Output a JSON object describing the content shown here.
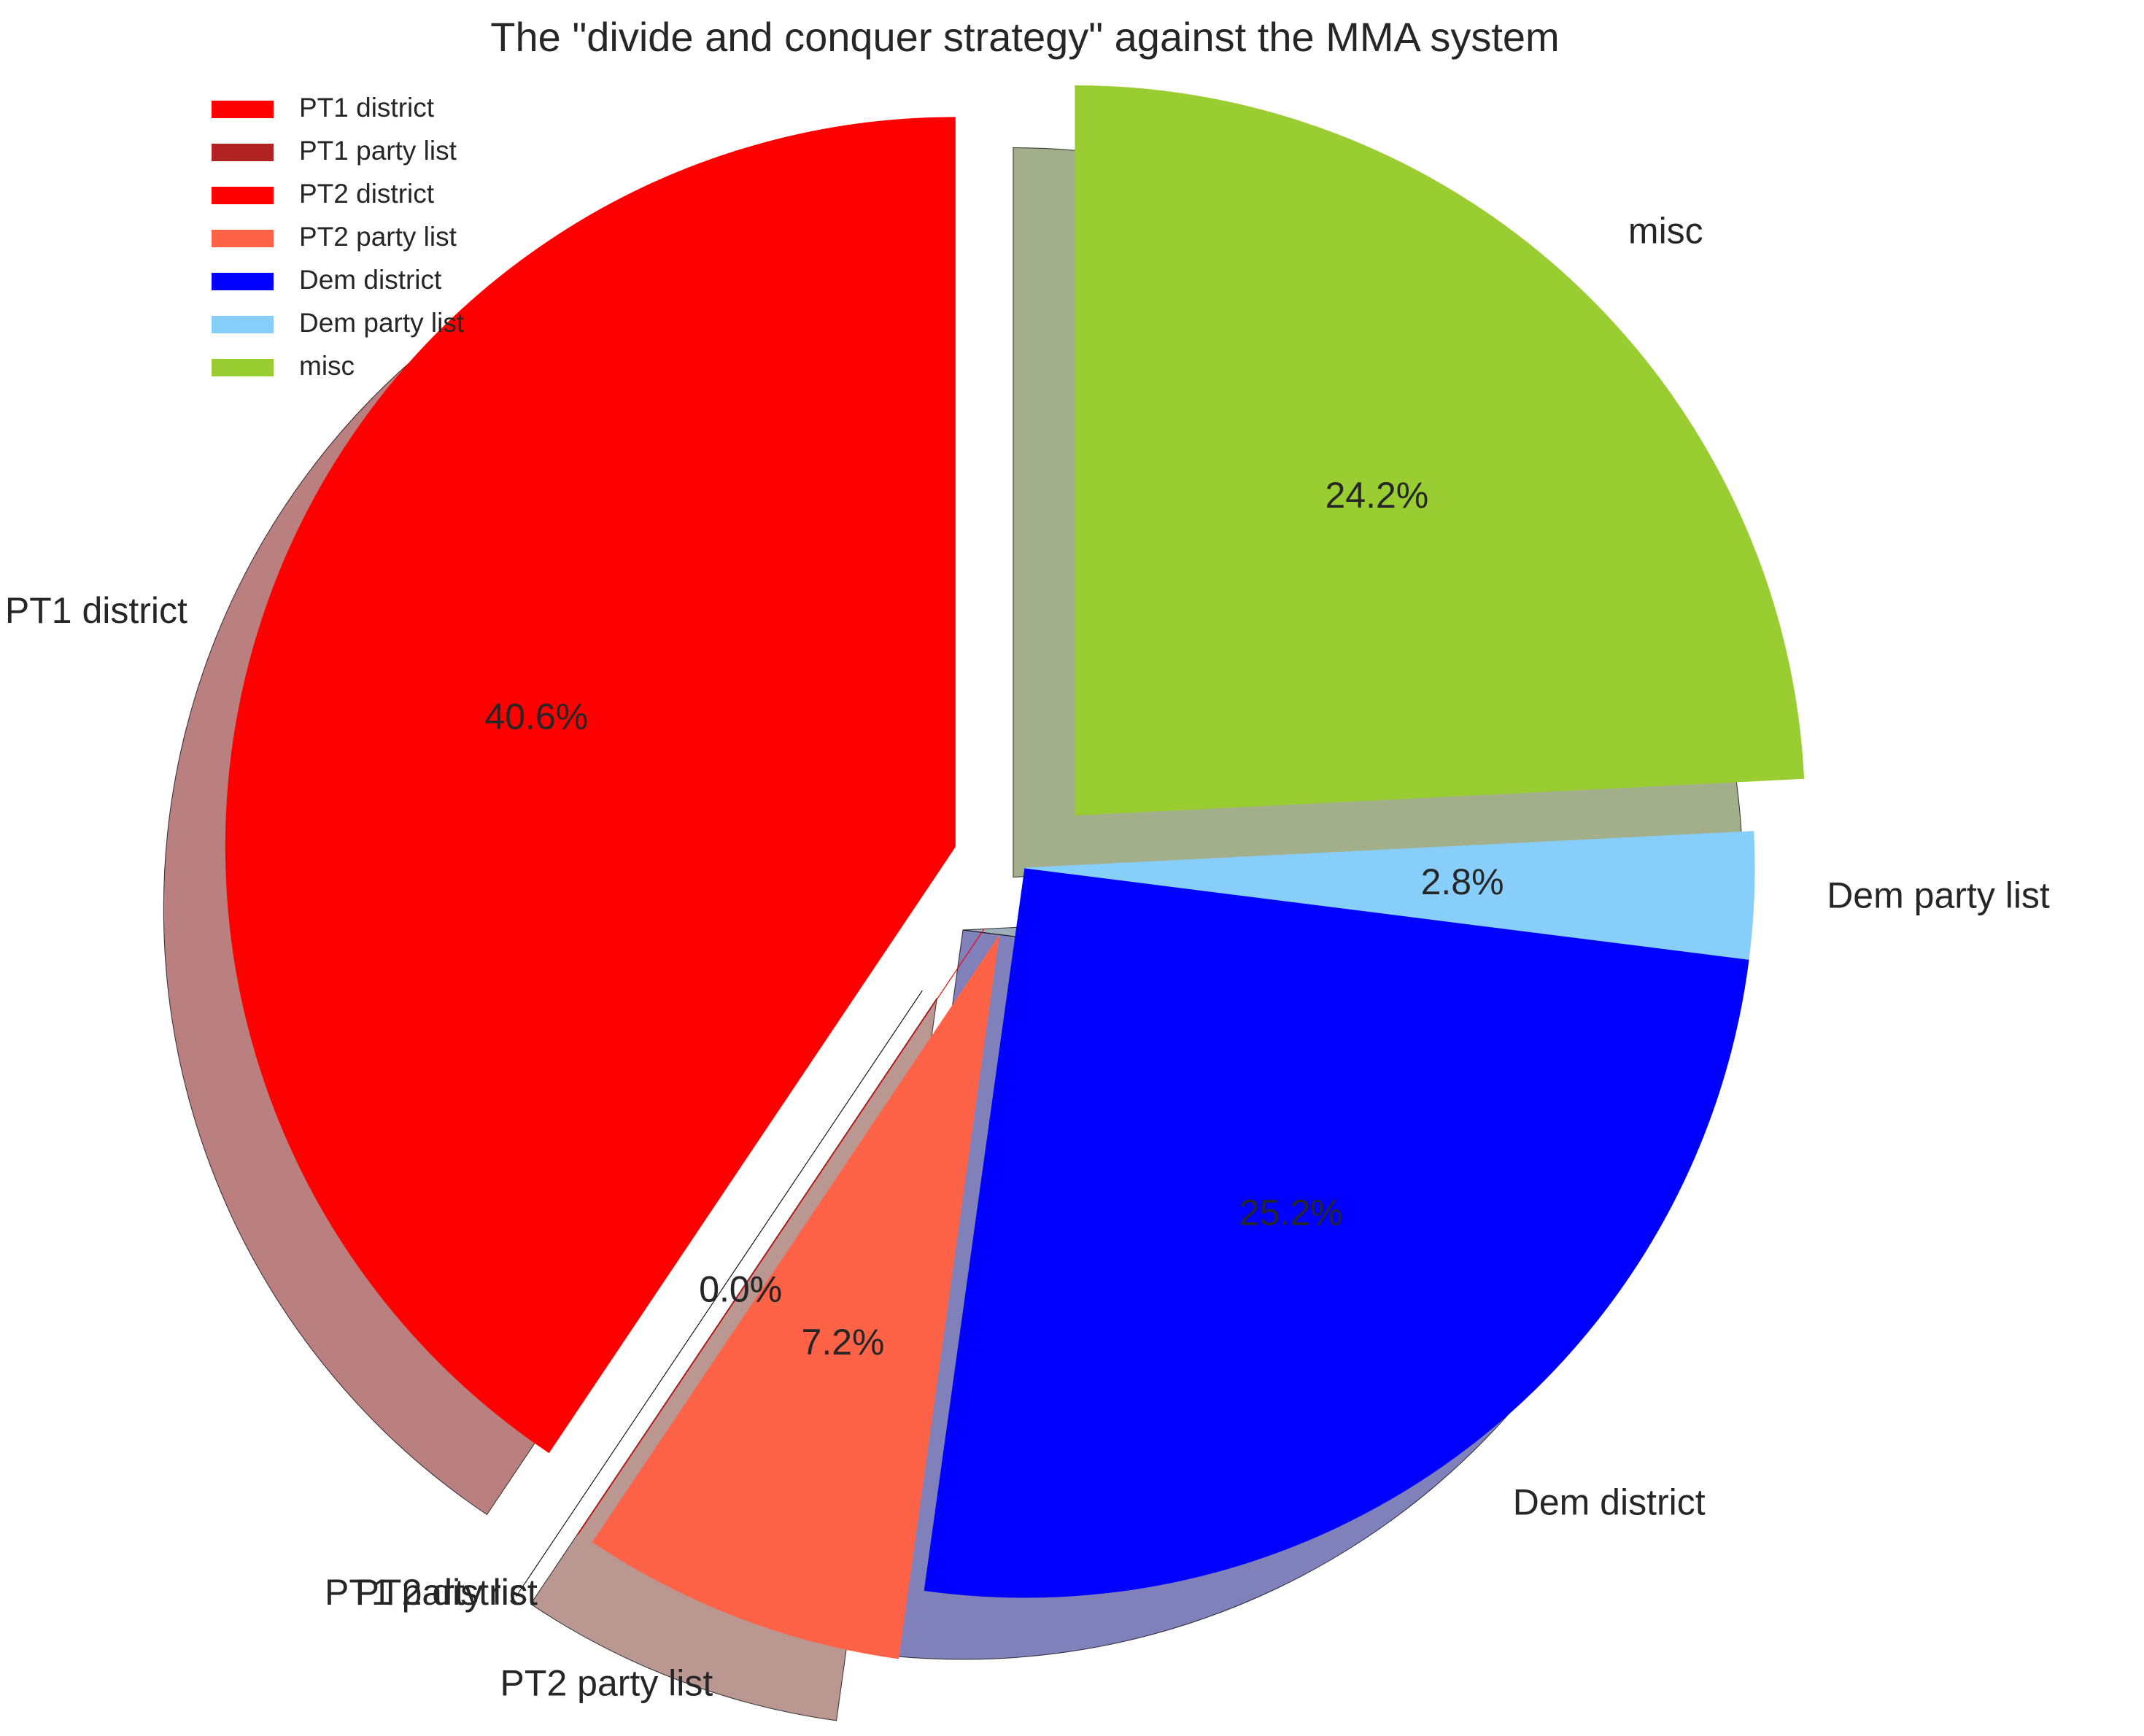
{
  "chart_data": {
    "type": "pie",
    "title": "The \"divide and conquer strategy\" against the MMA system",
    "start_angle_deg": 90,
    "direction": "counterclockwise",
    "shadow": true,
    "legend_position": "top-left",
    "slices": [
      {
        "label": "PT1 district",
        "value": 40.6,
        "pct_label": "40.6%",
        "color": "#ff0000",
        "exploded": true
      },
      {
        "label": "PT1 party list",
        "value": 0.0,
        "pct_label": "0.0%",
        "color": "#b22222",
        "exploded": true
      },
      {
        "label": "PT2 district",
        "value": 0.0,
        "pct_label": "0.0%",
        "color": "#ff0000",
        "exploded": true
      },
      {
        "label": "PT2 party list",
        "value": 7.2,
        "pct_label": "7.2%",
        "color": "#ff6347",
        "exploded": true
      },
      {
        "label": "Dem district",
        "value": 25.2,
        "pct_label": "25.2%",
        "color": "#0000ff",
        "exploded": false
      },
      {
        "label": "Dem party list",
        "value": 2.8,
        "pct_label": "2.8%",
        "color": "#87cefa",
        "exploded": false
      },
      {
        "label": "misc",
        "value": 24.2,
        "pct_label": "24.2%",
        "color": "#9acd32",
        "exploded": true
      }
    ]
  }
}
